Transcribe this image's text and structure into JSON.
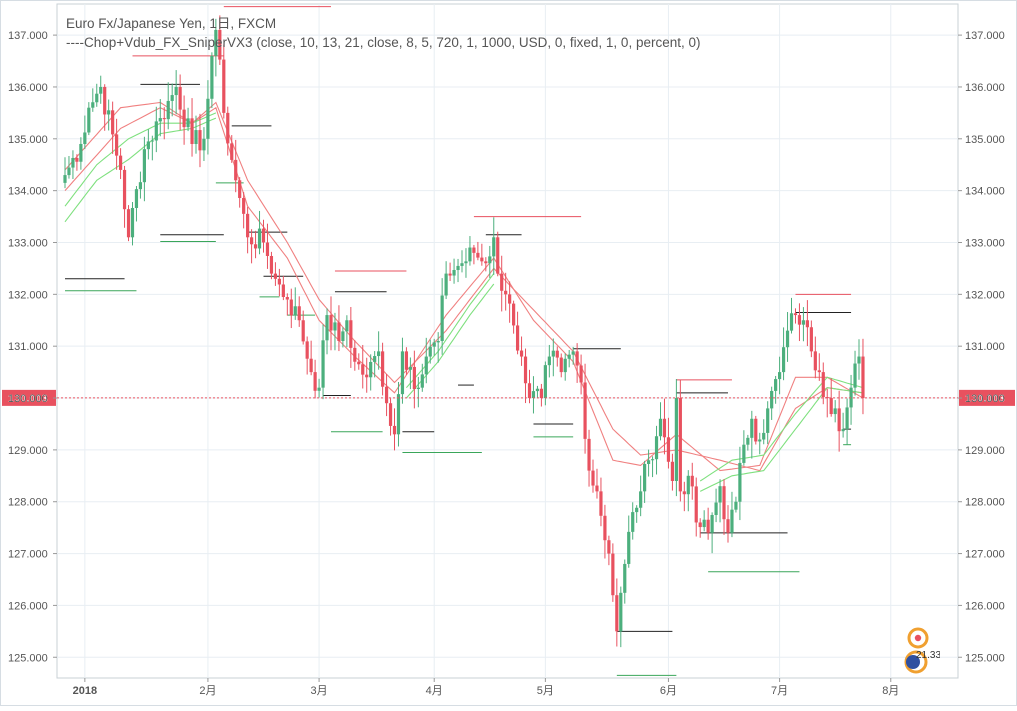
{
  "legend": {
    "line1": "Euro Fx/Japanese Yen, 1日, FXCM",
    "line2": "----Chop+Vdub_FX_SniperVX3 (close, 10, 13, 21, close, 8, 5, 720, 1, 1000, USD, 0, fixed, 1, 0, percent, 0)"
  },
  "badge": {
    "value": "21.33"
  },
  "colors": {
    "up": "#4caf7d",
    "down": "#e8515f",
    "ema_red": "#f08080",
    "ema_green": "#7ee07e",
    "grid": "#e8eef3",
    "price_line": "#e8515f",
    "axis_text": "#555555",
    "badge_orange": "#f0a030",
    "badge_blue": "#3050a0"
  },
  "chart_data": {
    "type": "candlestick",
    "symbol": "EUR/JPY",
    "y_range": [
      124.6,
      137.6
    ],
    "y_ticks": [
      125,
      126,
      127,
      128,
      129,
      130,
      131,
      132,
      133,
      134,
      135,
      136,
      137
    ],
    "y_tick_labels": [
      "125.000",
      "126.000",
      "127.000",
      "128.000",
      "129.000",
      "130.000",
      "131.000",
      "132.000",
      "133.000",
      "134.000",
      "135.000",
      "136.000",
      "137.000"
    ],
    "x_ticks": [
      {
        "label": "2018",
        "index": 5
      },
      {
        "label": "2月",
        "index": 36
      },
      {
        "label": "3月",
        "index": 64
      },
      {
        "label": "4月",
        "index": 93
      },
      {
        "label": "5月",
        "index": 121
      },
      {
        "label": "6月",
        "index": 152
      },
      {
        "label": "7月",
        "index": 180
      },
      {
        "label": "8月",
        "index": 208
      }
    ],
    "last_price": 130.003,
    "last_price_label": "130.003",
    "keypoints": [
      [
        0,
        134.3
      ],
      [
        4,
        134.9
      ],
      [
        6,
        135.6
      ],
      [
        9,
        136.0
      ],
      [
        14,
        134.4
      ],
      [
        16,
        133.1
      ],
      [
        20,
        134.8
      ],
      [
        24,
        135.4
      ],
      [
        28,
        136.0
      ],
      [
        32,
        134.9
      ],
      [
        35,
        135.0
      ],
      [
        37,
        136.6
      ],
      [
        38,
        137.1
      ],
      [
        40,
        135.5
      ],
      [
        43,
        134.2
      ],
      [
        46,
        133.1
      ],
      [
        50,
        133.0
      ],
      [
        53,
        132.3
      ],
      [
        56,
        131.9
      ],
      [
        59,
        131.5
      ],
      [
        62,
        130.5
      ],
      [
        64,
        130.2
      ],
      [
        66,
        131.6
      ],
      [
        69,
        131.1
      ],
      [
        71,
        131.5
      ],
      [
        73,
        130.7
      ],
      [
        76,
        130.4
      ],
      [
        79,
        130.9
      ],
      [
        81,
        129.9
      ],
      [
        83,
        129.3
      ],
      [
        85,
        130.9
      ],
      [
        87,
        130.6
      ],
      [
        89,
        130.2
      ],
      [
        91,
        130.8
      ],
      [
        94,
        131.1
      ],
      [
        96,
        132.4
      ],
      [
        100,
        132.6
      ],
      [
        103,
        132.8
      ],
      [
        106,
        132.6
      ],
      [
        108,
        133.1
      ],
      [
        109,
        132.4
      ],
      [
        111,
        132.0
      ],
      [
        113,
        131.4
      ],
      [
        115,
        130.8
      ],
      [
        117,
        130.0
      ],
      [
        120,
        130.0
      ],
      [
        122,
        130.8
      ],
      [
        125,
        130.5
      ],
      [
        128,
        130.9
      ],
      [
        130,
        130.3
      ],
      [
        132,
        128.6
      ],
      [
        134,
        128.2
      ],
      [
        137,
        127.0
      ],
      [
        139,
        125.5
      ],
      [
        141,
        126.8
      ],
      [
        143,
        127.8
      ],
      [
        145,
        128.2
      ],
      [
        147,
        128.8
      ],
      [
        150,
        129.6
      ],
      [
        153,
        128.4
      ],
      [
        154,
        130.0
      ],
      [
        155,
        128.2
      ],
      [
        157,
        128.5
      ],
      [
        159,
        127.6
      ],
      [
        162,
        127.4
      ],
      [
        165,
        128.3
      ],
      [
        167,
        127.4
      ],
      [
        169,
        128.0
      ],
      [
        171,
        129.1
      ],
      [
        173,
        129.6
      ],
      [
        175,
        129.2
      ],
      [
        177,
        129.8
      ],
      [
        180,
        130.5
      ],
      [
        182,
        131.3
      ],
      [
        184,
        131.6
      ],
      [
        186,
        131.5
      ],
      [
        188,
        130.9
      ],
      [
        190,
        130.5
      ],
      [
        192,
        130.0
      ],
      [
        194,
        129.8
      ],
      [
        196,
        129.4
      ],
      [
        198,
        130.2
      ],
      [
        200,
        130.8
      ],
      [
        201,
        130.0
      ]
    ],
    "ema_red": [
      [
        0,
        134.4
      ],
      [
        14,
        135.6
      ],
      [
        24,
        135.7
      ],
      [
        32,
        135.3
      ],
      [
        38,
        135.6
      ],
      [
        46,
        133.7
      ],
      [
        56,
        132.7
      ],
      [
        64,
        131.5
      ],
      [
        73,
        130.8
      ],
      [
        83,
        130.1
      ],
      [
        96,
        131.6
      ],
      [
        108,
        132.7
      ],
      [
        118,
        131.5
      ],
      [
        128,
        130.7
      ],
      [
        138,
        128.8
      ],
      [
        145,
        128.7
      ],
      [
        154,
        129.3
      ],
      [
        165,
        128.6
      ],
      [
        175,
        128.7
      ],
      [
        184,
        130.4
      ],
      [
        192,
        130.4
      ],
      [
        201,
        130.0
      ]
    ],
    "ema_red2": [
      [
        0,
        134.0
      ],
      [
        14,
        135.2
      ],
      [
        24,
        135.6
      ],
      [
        32,
        135.3
      ],
      [
        38,
        135.7
      ],
      [
        46,
        134.2
      ],
      [
        56,
        133.0
      ],
      [
        64,
        131.9
      ],
      [
        73,
        131.1
      ],
      [
        83,
        130.3
      ],
      [
        96,
        131.3
      ],
      [
        108,
        132.5
      ],
      [
        118,
        131.7
      ],
      [
        128,
        130.9
      ],
      [
        138,
        129.4
      ],
      [
        145,
        128.9
      ],
      [
        154,
        129.0
      ],
      [
        165,
        128.8
      ],
      [
        175,
        128.6
      ],
      [
        184,
        129.8
      ],
      [
        192,
        130.2
      ],
      [
        201,
        130.1
      ]
    ],
    "ema_green": [
      [
        0,
        133.4
      ],
      [
        8,
        134.2
      ],
      [
        16,
        134.6
      ],
      [
        24,
        135.1
      ],
      [
        32,
        135.2
      ],
      [
        38,
        135.4
      ]
    ],
    "ema_green_mid": [
      [
        86,
        130.0
      ],
      [
        94,
        130.7
      ],
      [
        102,
        131.6
      ],
      [
        108,
        132.2
      ]
    ],
    "ema_green_late": [
      [
        160,
        128.2
      ],
      [
        168,
        128.5
      ],
      [
        176,
        128.6
      ],
      [
        184,
        129.4
      ],
      [
        192,
        130.2
      ],
      [
        201,
        130.1
      ]
    ],
    "ema_green2": [
      [
        0,
        133.7
      ],
      [
        8,
        134.5
      ],
      [
        16,
        135.0
      ],
      [
        24,
        135.3
      ],
      [
        32,
        135.3
      ],
      [
        38,
        135.5
      ]
    ],
    "ema_green_mid2": [
      [
        86,
        130.2
      ],
      [
        94,
        130.9
      ],
      [
        102,
        131.8
      ],
      [
        108,
        132.4
      ]
    ],
    "ema_green_late2": [
      [
        160,
        128.4
      ],
      [
        168,
        128.8
      ],
      [
        176,
        128.9
      ],
      [
        184,
        129.7
      ],
      [
        192,
        130.4
      ],
      [
        201,
        130.2
      ]
    ],
    "sr_levels": [
      {
        "from": 0,
        "to": 15,
        "value": 132.3,
        "color": "black"
      },
      {
        "from": 0,
        "to": 18,
        "value": 132.07,
        "color": "green"
      },
      {
        "from": 17,
        "to": 40,
        "value": 136.6,
        "color": "red"
      },
      {
        "from": 19,
        "to": 34,
        "value": 136.05,
        "color": "black"
      },
      {
        "from": 24,
        "to": 40,
        "value": 133.15,
        "color": "black"
      },
      {
        "from": 24,
        "to": 38,
        "value": 133.02,
        "color": "green"
      },
      {
        "from": 38,
        "to": 45,
        "value": 134.15,
        "color": "green"
      },
      {
        "from": 40,
        "to": 67,
        "value": 137.55,
        "color": "red"
      },
      {
        "from": 42,
        "to": 52,
        "value": 135.25,
        "color": "black"
      },
      {
        "from": 46,
        "to": 56,
        "value": 133.2,
        "color": "black"
      },
      {
        "from": 49,
        "to": 54,
        "value": 131.95,
        "color": "green"
      },
      {
        "from": 50,
        "to": 60,
        "value": 132.35,
        "color": "black"
      },
      {
        "from": 56,
        "to": 63,
        "value": 131.6,
        "color": "green"
      },
      {
        "from": 65,
        "to": 72,
        "value": 130.05,
        "color": "black"
      },
      {
        "from": 67,
        "to": 80,
        "value": 129.35,
        "color": "green"
      },
      {
        "from": 68,
        "to": 86,
        "value": 132.45,
        "color": "red"
      },
      {
        "from": 68,
        "to": 81,
        "value": 132.05,
        "color": "black"
      },
      {
        "from": 85,
        "to": 93,
        "value": 129.35,
        "color": "black"
      },
      {
        "from": 85,
        "to": 105,
        "value": 128.95,
        "color": "green"
      },
      {
        "from": 99,
        "to": 103,
        "value": 130.25,
        "color": "black"
      },
      {
        "from": 103,
        "to": 130,
        "value": 133.5,
        "color": "red"
      },
      {
        "from": 106,
        "to": 115,
        "value": 133.15,
        "color": "black"
      },
      {
        "from": 118,
        "to": 128,
        "value": 129.5,
        "color": "black"
      },
      {
        "from": 118,
        "to": 128,
        "value": 129.25,
        "color": "green"
      },
      {
        "from": 128,
        "to": 140,
        "value": 130.95,
        "color": "black"
      },
      {
        "from": 139,
        "to": 153,
        "value": 125.5,
        "color": "black"
      },
      {
        "from": 139,
        "to": 154,
        "value": 124.65,
        "color": "green"
      },
      {
        "from": 154,
        "to": 168,
        "value": 130.35,
        "color": "red"
      },
      {
        "from": 154,
        "to": 167,
        "value": 130.1,
        "color": "black"
      },
      {
        "from": 160,
        "to": 182,
        "value": 127.4,
        "color": "black"
      },
      {
        "from": 162,
        "to": 185,
        "value": 126.65,
        "color": "green"
      },
      {
        "from": 184,
        "to": 198,
        "value": 132.0,
        "color": "red"
      },
      {
        "from": 184,
        "to": 198,
        "value": 131.65,
        "color": "black"
      },
      {
        "from": 196,
        "to": 198,
        "value": 129.4,
        "color": "black"
      },
      {
        "from": 196,
        "to": 198,
        "value": 129.1,
        "color": "green"
      }
    ]
  }
}
